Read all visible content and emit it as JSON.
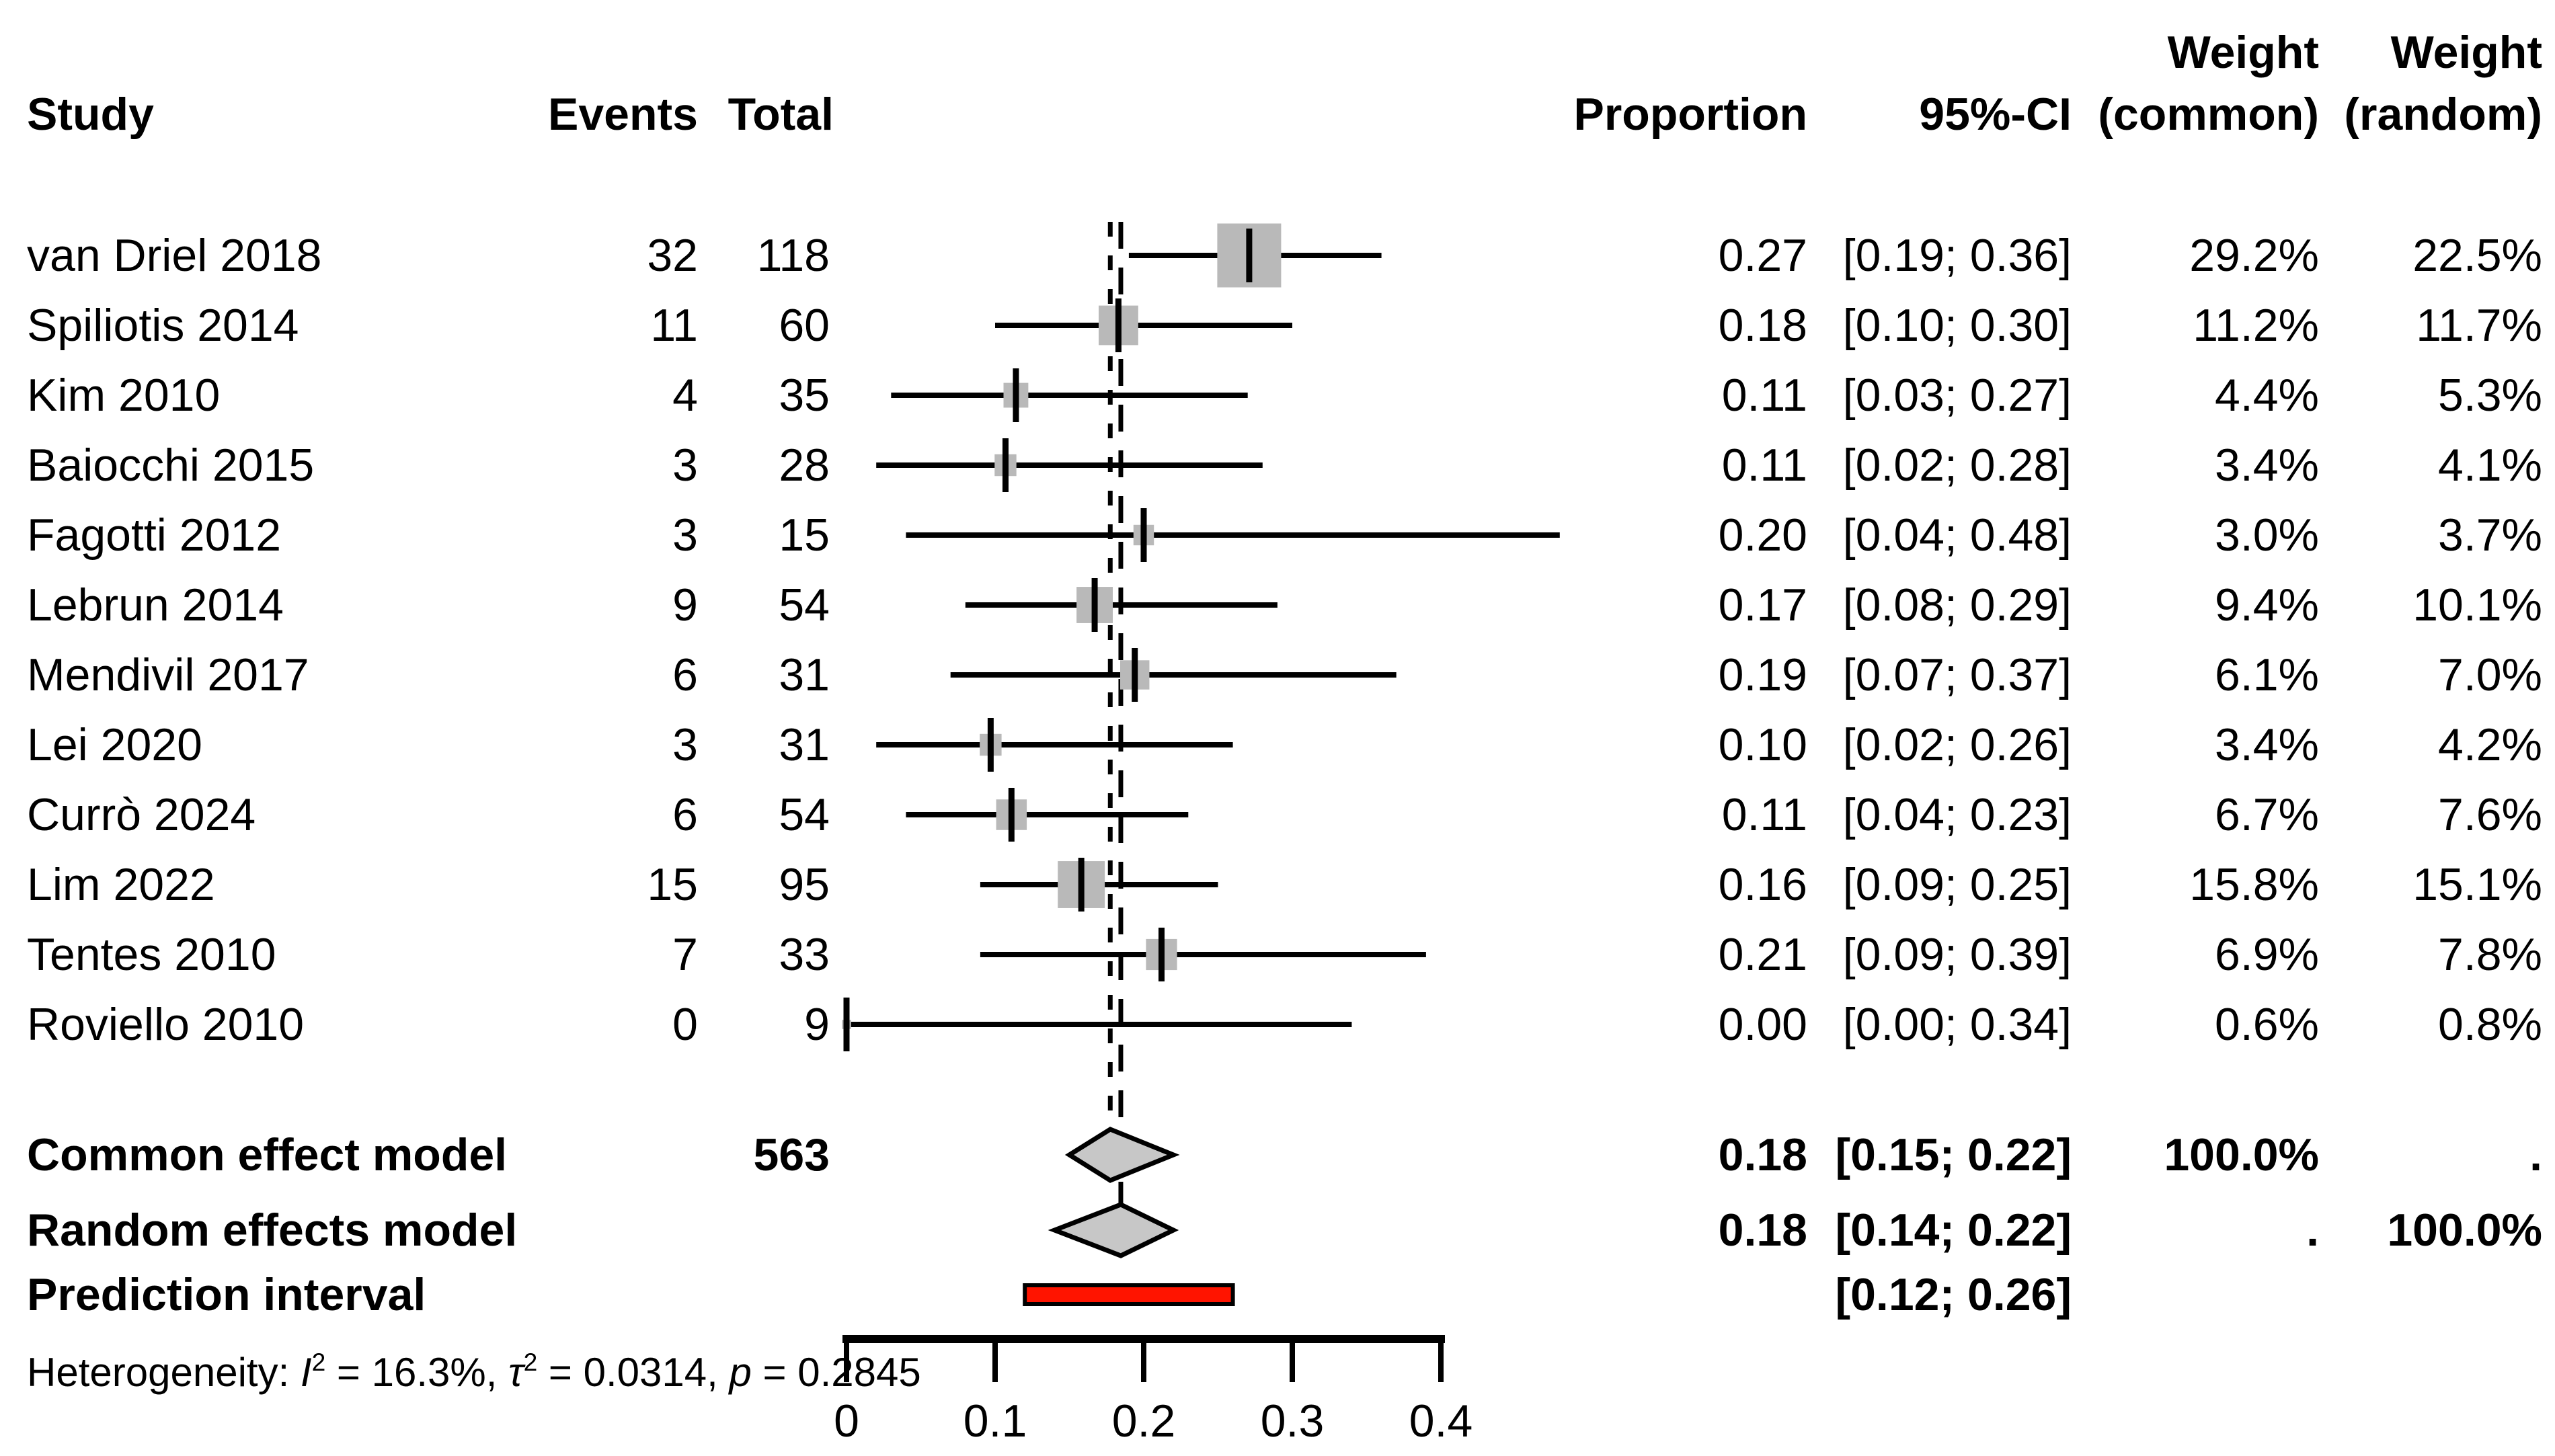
{
  "header": {
    "study": "Study",
    "events": "Events",
    "total": "Total",
    "proportion": "Proportion",
    "ci": "95%-CI",
    "weight_top_common": "Weight",
    "weight_top_random": "Weight",
    "weight_common": "(common)",
    "weight_random": "(random)"
  },
  "colors": {
    "square": "#b9b9b9",
    "diamond": "#c7c7c7",
    "prediction_bar": "#ff1400",
    "line": "#000000",
    "background": "#ffffff"
  },
  "chart_data": {
    "type": "forest",
    "title": "",
    "xlabel": "",
    "x_axis": {
      "range": [
        0,
        0.4
      ],
      "tick_values": [
        0,
        0.1,
        0.2,
        0.3,
        0.4
      ],
      "tick_labels": [
        "0",
        "0.1",
        "0.2",
        "0.3",
        "0.4"
      ]
    },
    "reference_lines": [
      {
        "name": "common-effect-estimate",
        "value": 0.1775,
        "dash": "short"
      },
      {
        "name": "random-effects-estimate",
        "value": 0.1846,
        "dash": "long"
      }
    ],
    "studies": [
      {
        "study": "van Driel 2018",
        "events": "32",
        "total": "118",
        "proportion": "0.27",
        "ci": "[0.19; 0.36]",
        "weight_common": "29.2%",
        "weight_random": "22.5%",
        "est": 0.271,
        "lo": 0.19,
        "hi": 0.36,
        "weight_pct": 29.2
      },
      {
        "study": "Spiliotis 2014",
        "events": "11",
        "total": "60",
        "proportion": "0.18",
        "ci": "[0.10; 0.30]",
        "weight_common": "11.2%",
        "weight_random": "11.7%",
        "est": 0.183,
        "lo": 0.1,
        "hi": 0.3,
        "weight_pct": 11.2
      },
      {
        "study": "Kim 2010",
        "events": "4",
        "total": "35",
        "proportion": "0.11",
        "ci": "[0.03; 0.27]",
        "weight_common": "4.4%",
        "weight_random": "5.3%",
        "est": 0.114,
        "lo": 0.03,
        "hi": 0.27,
        "weight_pct": 4.4
      },
      {
        "study": "Baiocchi 2015",
        "events": "3",
        "total": "28",
        "proportion": "0.11",
        "ci": "[0.02; 0.28]",
        "weight_common": "3.4%",
        "weight_random": "4.1%",
        "est": 0.107,
        "lo": 0.02,
        "hi": 0.28,
        "weight_pct": 3.4
      },
      {
        "study": "Fagotti 2012",
        "events": "3",
        "total": "15",
        "proportion": "0.20",
        "ci": "[0.04; 0.48]",
        "weight_common": "3.0%",
        "weight_random": "3.7%",
        "est": 0.2,
        "lo": 0.04,
        "hi": 0.48,
        "weight_pct": 3.0
      },
      {
        "study": "Lebrun 2014",
        "events": "9",
        "total": "54",
        "proportion": "0.17",
        "ci": "[0.08; 0.29]",
        "weight_common": "9.4%",
        "weight_random": "10.1%",
        "est": 0.167,
        "lo": 0.08,
        "hi": 0.29,
        "weight_pct": 9.4
      },
      {
        "study": "Mendivil 2017",
        "events": "6",
        "total": "31",
        "proportion": "0.19",
        "ci": "[0.07; 0.37]",
        "weight_common": "6.1%",
        "weight_random": "7.0%",
        "est": 0.194,
        "lo": 0.07,
        "hi": 0.37,
        "weight_pct": 6.1
      },
      {
        "study": "Lei 2020",
        "events": "3",
        "total": "31",
        "proportion": "0.10",
        "ci": "[0.02; 0.26]",
        "weight_common": "3.4%",
        "weight_random": "4.2%",
        "est": 0.097,
        "lo": 0.02,
        "hi": 0.26,
        "weight_pct": 3.4
      },
      {
        "study": "Currò 2024",
        "events": "6",
        "total": "54",
        "proportion": "0.11",
        "ci": "[0.04; 0.23]",
        "weight_common": "6.7%",
        "weight_random": "7.6%",
        "est": 0.111,
        "lo": 0.04,
        "hi": 0.23,
        "weight_pct": 6.7
      },
      {
        "study": "Lim 2022",
        "events": "15",
        "total": "95",
        "proportion": "0.16",
        "ci": "[0.09; 0.25]",
        "weight_common": "15.8%",
        "weight_random": "15.1%",
        "est": 0.158,
        "lo": 0.09,
        "hi": 0.25,
        "weight_pct": 15.8
      },
      {
        "study": "Tentes 2010",
        "events": "7",
        "total": "33",
        "proportion": "0.21",
        "ci": "[0.09; 0.39]",
        "weight_common": "6.9%",
        "weight_random": "7.8%",
        "est": 0.212,
        "lo": 0.09,
        "hi": 0.39,
        "weight_pct": 6.9
      },
      {
        "study": "Roviello 2010",
        "events": "0",
        "total": "9",
        "proportion": "0.00",
        "ci": "[0.00; 0.34]",
        "weight_common": "0.6%",
        "weight_random": "0.8%",
        "est": 0.0,
        "lo": 0.0,
        "hi": 0.34,
        "weight_pct": 0.6
      }
    ],
    "summaries": [
      {
        "label": "Common effect model",
        "total": "563",
        "proportion": "0.18",
        "ci": "[0.15; 0.22]",
        "weight_common": "100.0%",
        "weight_random": ".",
        "est": 0.1775,
        "lo": 0.15,
        "hi": 0.22
      },
      {
        "label": "Random effects model",
        "total": "",
        "proportion": "0.18",
        "ci": "[0.14; 0.22]",
        "weight_common": ".",
        "weight_random": "100.0%",
        "est": 0.1846,
        "lo": 0.14,
        "hi": 0.22
      }
    ],
    "prediction_interval": {
      "label": "Prediction interval",
      "ci": "[0.12; 0.26]",
      "lo": 0.12,
      "hi": 0.26
    },
    "heterogeneity": {
      "plain": "Heterogeneity: I2 = 16.3%, τ2 = 0.0314, p = 0.2845",
      "parts": [
        {
          "t": "Heterogeneity: "
        },
        {
          "t": "I",
          "italic": true
        },
        {
          "t": "2",
          "sup": true
        },
        {
          "t": " = 16.3%, "
        },
        {
          "t": "τ",
          "italic": true
        },
        {
          "t": "2",
          "sup": true
        },
        {
          "t": " = 0.0314, "
        },
        {
          "t": "p",
          "italic": true
        },
        {
          "t": " = 0.2845"
        }
      ]
    }
  }
}
